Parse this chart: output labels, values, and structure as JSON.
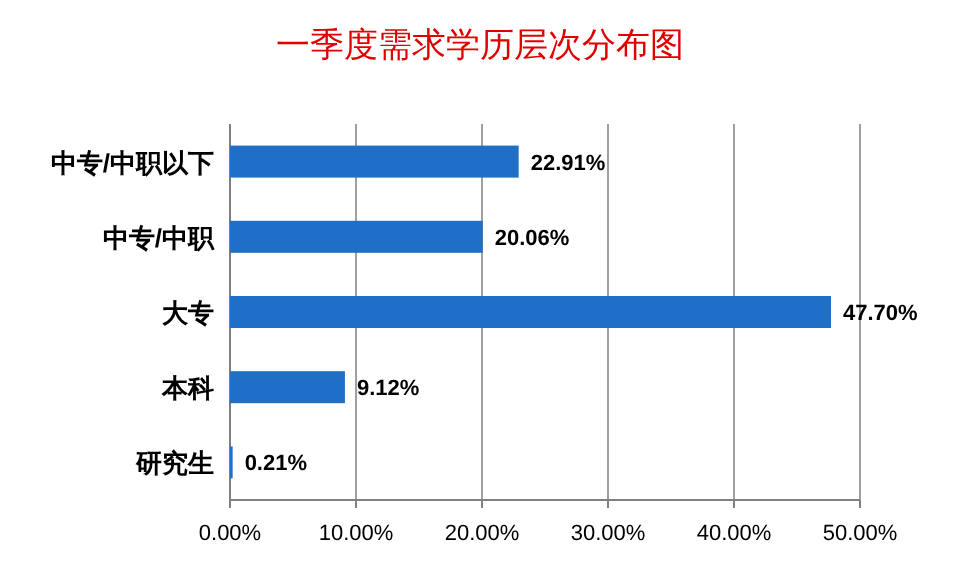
{
  "chart_data": {
    "type": "bar",
    "orientation": "horizontal",
    "title": "一季度需求学历层次分布图",
    "categories": [
      "中专/中职以下",
      "中专/中职",
      "大专",
      "本科",
      "研究生"
    ],
    "values": [
      22.91,
      20.06,
      47.7,
      9.12,
      0.21
    ],
    "value_labels": [
      "22.91%",
      "20.06%",
      "47.70%",
      "9.12%",
      "0.21%"
    ],
    "color": "#1f6fc6",
    "xlim": [
      0,
      50
    ],
    "xticks": [
      {
        "value": 0,
        "label": "0.00%"
      },
      {
        "value": 10,
        "label": "10.00%"
      },
      {
        "value": 20,
        "label": "20.00%"
      },
      {
        "value": 30,
        "label": "30.00%"
      },
      {
        "value": 40,
        "label": "40.00%"
      },
      {
        "value": 50,
        "label": "50.00%"
      }
    ],
    "grid": "x"
  }
}
